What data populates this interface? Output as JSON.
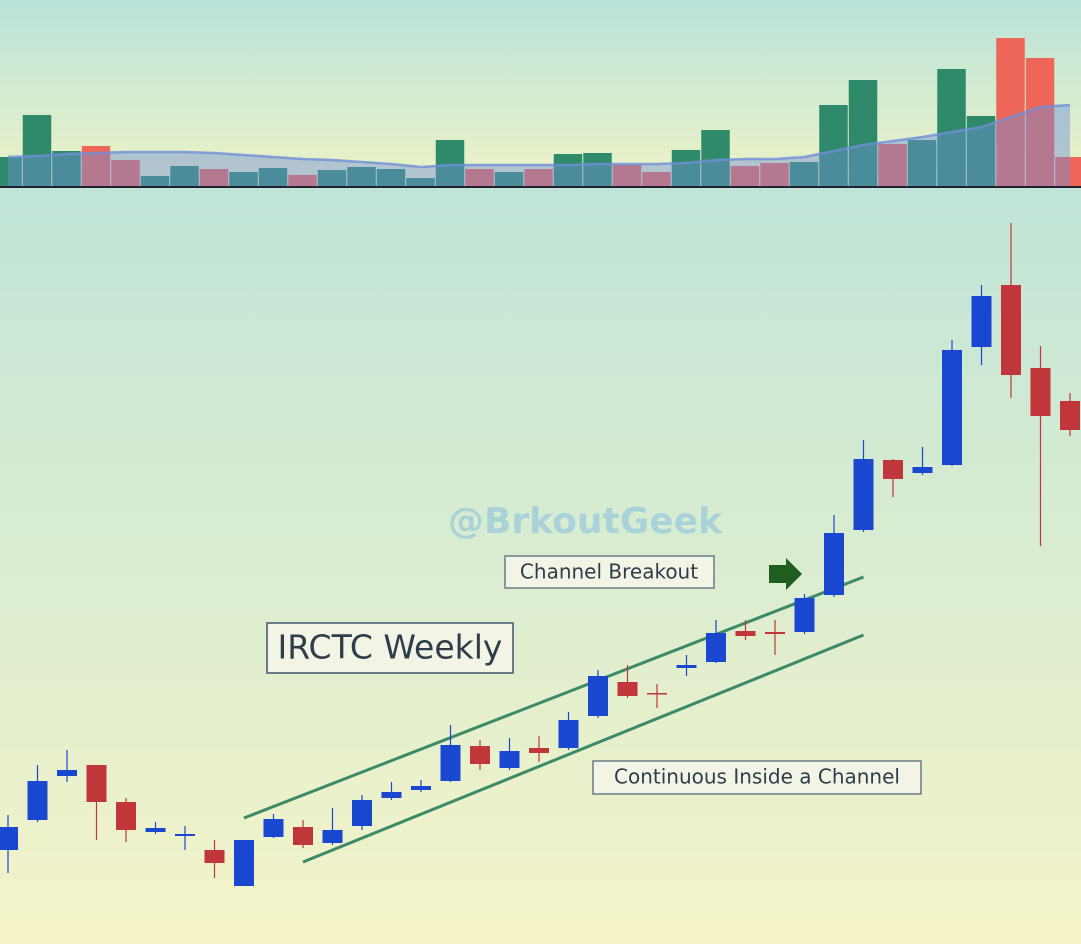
{
  "chart_data": [
    {
      "type": "candlestick",
      "title": "IRCTC Weekly",
      "watermark": "@BrkoutGeek",
      "annotations": [
        "Channel Breakout",
        "Continuous Inside a Channel"
      ],
      "up_color": "#1a47d0",
      "down_color": "#c0363a",
      "open": [
        94,
        124,
        168,
        179,
        142,
        112,
        108,
        94,
        58,
        107,
        117,
        101,
        118,
        146,
        154,
        163,
        198,
        176,
        196,
        196,
        228,
        262,
        251,
        276,
        282,
        313,
        312,
        312,
        349,
        414,
        484,
        471,
        479,
        597,
        659,
        576,
        543
      ],
      "high": [
        129,
        179,
        194,
        179,
        146,
        122,
        118,
        104,
        104,
        130,
        124,
        136,
        149,
        162,
        164,
        219,
        204,
        206,
        208,
        232,
        274,
        279,
        260,
        289,
        324,
        324,
        324,
        350,
        429,
        504,
        485,
        497,
        604,
        659,
        721,
        598,
        551
      ],
      "low": [
        71,
        122,
        162,
        104,
        102,
        110,
        94,
        66,
        58,
        106,
        96,
        99,
        114,
        144,
        152,
        162,
        174,
        174,
        182,
        194,
        226,
        246,
        236,
        268,
        281,
        304,
        289,
        310,
        347,
        412,
        447,
        469,
        478,
        579,
        546,
        398,
        508
      ],
      "close": [
        117,
        163,
        174,
        142,
        114,
        116,
        110,
        81,
        104,
        125,
        99,
        114,
        144,
        152,
        158,
        199,
        180,
        193,
        191,
        224,
        268,
        248,
        250,
        279,
        311,
        308,
        310,
        346,
        411,
        485,
        465,
        477,
        594,
        648,
        569,
        528,
        514
      ],
      "ylim": [
        0,
        754
      ],
      "lines": [
        {
          "x": [
            8,
            29
          ],
          "values": [
            126,
            367
          ],
          "color": "#3d8a68"
        },
        {
          "x": [
            10,
            29
          ],
          "values": [
            82,
            309
          ],
          "color": "#3d8a68"
        }
      ]
    },
    {
      "type": "bar",
      "up_color": "#2e8a6a",
      "down_color": "#ee6658",
      "ma_color": "#6f8fd8",
      "values": [
        30,
        72,
        36,
        41,
        27,
        11,
        21,
        18,
        15,
        19,
        12,
        17,
        20,
        18,
        9,
        47,
        18,
        15,
        18,
        33,
        34,
        22,
        15,
        37,
        57,
        21,
        24,
        25,
        82,
        107,
        43,
        47,
        118,
        71,
        149,
        129,
        30
      ],
      "ma": [
        30,
        31,
        33,
        34,
        35,
        35,
        35,
        34,
        32,
        30,
        28,
        27,
        25,
        23,
        20,
        22,
        22,
        22,
        22,
        22,
        23,
        23,
        23,
        24,
        27,
        28,
        28,
        30,
        36,
        42,
        46,
        50,
        55,
        60,
        70,
        80,
        82
      ],
      "ylim": [
        0,
        187
      ]
    }
  ]
}
